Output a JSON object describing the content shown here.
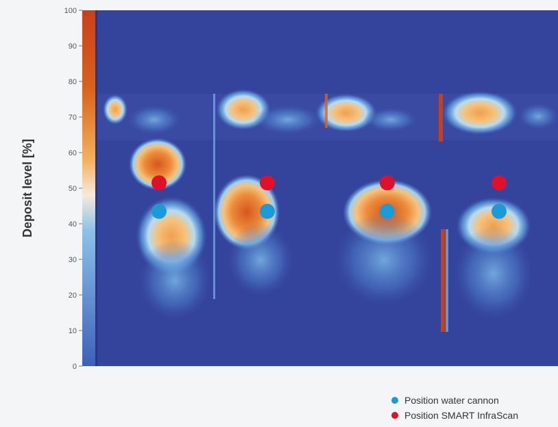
{
  "chart_data": {
    "type": "heatmap",
    "title": "",
    "xlabel": "",
    "ylabel": "Deposit level [%]",
    "ylim": [
      0,
      100
    ],
    "yticks": [
      0,
      10,
      20,
      30,
      40,
      50,
      60,
      70,
      80,
      90,
      100
    ],
    "colors": {
      "background": "#34439b",
      "hot": "#d4531f",
      "warm": "#f29b4b",
      "cool": "#5aa5dc",
      "marker_water_cannon": "#1a9ad6",
      "marker_infrascan": "#e0102a"
    },
    "series": [
      {
        "name": "Position water cannon",
        "color": "#1a9ad6",
        "points": [
          {
            "x": 1,
            "y": 43.5
          },
          {
            "x": 2,
            "y": 43.5
          },
          {
            "x": 3,
            "y": 43.5
          },
          {
            "x": 4,
            "y": 43.5
          }
        ]
      },
      {
        "name": "Position SMART InfraScan",
        "color": "#e0102a",
        "points": [
          {
            "x": 1,
            "y": 51.5
          },
          {
            "x": 2,
            "y": 51.5
          },
          {
            "x": 3,
            "y": 51.5
          },
          {
            "x": 4,
            "y": 51.5
          }
        ]
      }
    ]
  },
  "legend": {
    "items": [
      {
        "label": "Position water cannon",
        "color": "#1a9ad6"
      },
      {
        "label": "Position SMART InfraScan",
        "color": "#e0102a"
      }
    ]
  }
}
